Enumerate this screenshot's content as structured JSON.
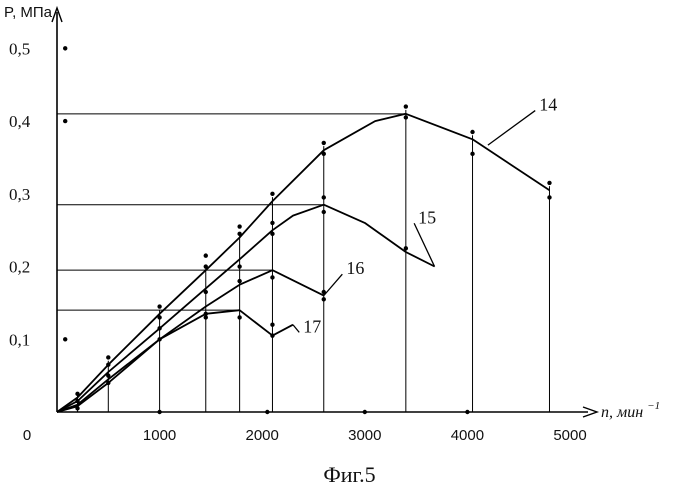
{
  "chart_data": {
    "type": "line",
    "ylabel": "P, МПа",
    "xlabel": "n, мин",
    "xlabel_exponent": "−1",
    "xlim": [
      0,
      5000
    ],
    "ylim": [
      0,
      0.55
    ],
    "x_ticks": [
      {
        "value": 0,
        "label": "0"
      },
      {
        "value": 1000,
        "label": "1000"
      },
      {
        "value": 2000,
        "label": "2000"
      },
      {
        "value": 3000,
        "label": "3000"
      },
      {
        "value": 4000,
        "label": "4000"
      },
      {
        "value": 5000,
        "label": "5000"
      }
    ],
    "y_ticks": [
      {
        "value": 0.1,
        "label": "0,1"
      },
      {
        "value": 0.2,
        "label": "0,2"
      },
      {
        "value": 0.3,
        "label": "0,3"
      },
      {
        "value": 0.4,
        "label": "0,4"
      },
      {
        "value": 0.5,
        "label": "0,5"
      }
    ],
    "series": [
      {
        "name": "14",
        "x": [
          0,
          200,
          500,
          1000,
          1450,
          1780,
          2100,
          2600,
          3100,
          3400,
          4050,
          4800
        ],
        "y": [
          0,
          0.02,
          0.065,
          0.135,
          0.195,
          0.24,
          0.29,
          0.36,
          0.4,
          0.41,
          0.375,
          0.305
        ],
        "label_pos": [
          4700,
          0.42
        ]
      },
      {
        "name": "15",
        "x": [
          0,
          200,
          500,
          1000,
          1450,
          1780,
          2100,
          2300,
          2600,
          3000,
          3400,
          3680
        ],
        "y": [
          0,
          0.015,
          0.055,
          0.115,
          0.17,
          0.21,
          0.25,
          0.27,
          0.285,
          0.26,
          0.22,
          0.2
        ],
        "label_pos": [
          3520,
          0.265
        ]
      },
      {
        "name": "16",
        "x": [
          0,
          200,
          500,
          1000,
          1450,
          1780,
          2100,
          2600
        ],
        "y": [
          0,
          0.01,
          0.045,
          0.1,
          0.145,
          0.175,
          0.195,
          0.16
        ],
        "label_pos": [
          2820,
          0.195
        ]
      },
      {
        "name": "17",
        "x": [
          0,
          200,
          500,
          1000,
          1450,
          1780,
          2100,
          2300
        ],
        "y": [
          0,
          0.008,
          0.04,
          0.1,
          0.135,
          0.14,
          0.105,
          0.12
        ],
        "label_pos": [
          2400,
          0.115
        ]
      }
    ],
    "guide_lines": [
      {
        "y": 0.41,
        "x_end": 3400
      },
      {
        "y": 0.285,
        "x_end": 2600
      },
      {
        "y": 0.195,
        "x_end": 2100
      },
      {
        "y": 0.14,
        "x_end": 1780
      }
    ],
    "vertical_lines_x": [
      200,
      500,
      1000,
      1450,
      1780,
      2100,
      2600,
      3400,
      4050,
      4800
    ],
    "points": [
      [
        80,
        0.5
      ],
      [
        80,
        0.4
      ],
      [
        80,
        0.1
      ],
      [
        200,
        0.025
      ],
      [
        200,
        0.015
      ],
      [
        200,
        0.005
      ],
      [
        500,
        0.075
      ],
      [
        500,
        0.065
      ],
      [
        500,
        0.05
      ],
      [
        500,
        0.04
      ],
      [
        1000,
        0.145
      ],
      [
        1000,
        0.13
      ],
      [
        1000,
        0.115
      ],
      [
        1000,
        0.1
      ],
      [
        1000,
        0.0
      ],
      [
        1450,
        0.215
      ],
      [
        1450,
        0.2
      ],
      [
        1450,
        0.165
      ],
      [
        1450,
        0.135
      ],
      [
        1450,
        0.13
      ],
      [
        1780,
        0.255
      ],
      [
        1780,
        0.245
      ],
      [
        1780,
        0.2
      ],
      [
        1780,
        0.18
      ],
      [
        1780,
        0.13
      ],
      [
        2100,
        0.3
      ],
      [
        2100,
        0.26
      ],
      [
        2100,
        0.245
      ],
      [
        2100,
        0.185
      ],
      [
        2100,
        0.12
      ],
      [
        2100,
        0.105
      ],
      [
        2600,
        0.37
      ],
      [
        2600,
        0.355
      ],
      [
        2600,
        0.295
      ],
      [
        2600,
        0.275
      ],
      [
        2600,
        0.165
      ],
      [
        2600,
        0.155
      ],
      [
        3400,
        0.42
      ],
      [
        3400,
        0.405
      ],
      [
        3400,
        0.225
      ],
      [
        4050,
        0.385
      ],
      [
        4050,
        0.355
      ],
      [
        4800,
        0.315
      ],
      [
        4800,
        0.295
      ],
      [
        2050,
        0.0
      ],
      [
        3000,
        0.0
      ],
      [
        4000,
        0.0
      ]
    ],
    "caption": "Фиг.5"
  }
}
